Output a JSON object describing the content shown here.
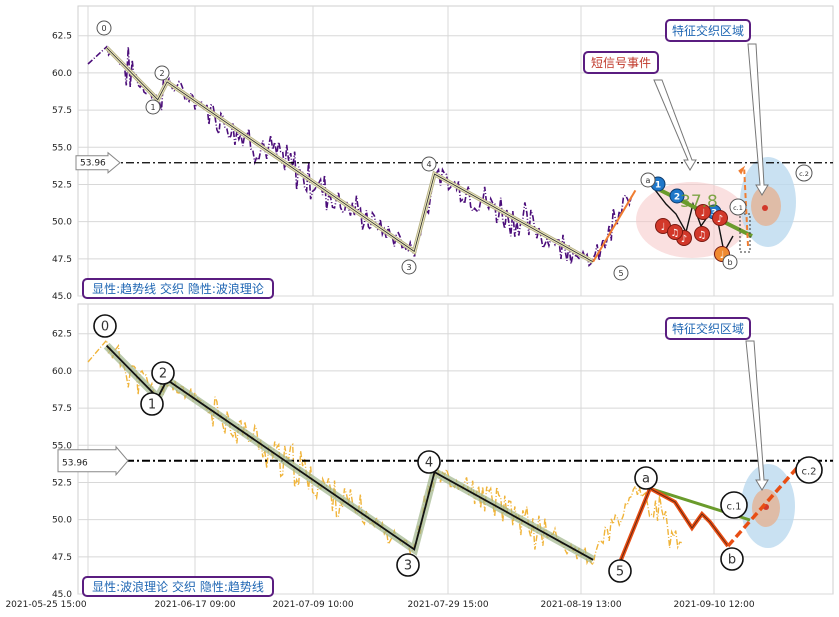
{
  "chart_data": [
    {
      "type": "line",
      "panel": "top",
      "ylim": [
        45.0,
        64.5
      ],
      "y_ticks": [
        "62.5",
        "60.0",
        "57.5",
        "55.0",
        "52.5",
        "50.0",
        "47.5",
        "45.0"
      ],
      "grid": true,
      "reference_line": {
        "value": 53.96,
        "label": "53.96",
        "style": "dash-dot",
        "color": "#000000"
      },
      "price_series": {
        "color": "#4b0d7a",
        "style": "dash-dot"
      },
      "wave_points": [
        {
          "label": "0",
          "x": "2021-05-29",
          "y": 61.7
        },
        {
          "label": "1",
          "x": "2021-06-09",
          "y": 58.2
        },
        {
          "label": "2",
          "x": "2021-06-11",
          "y": 59.4
        },
        {
          "label": "3",
          "x": "2021-07-24",
          "y": 48.0
        },
        {
          "label": "4",
          "x": "2021-07-27",
          "y": 53.2
        },
        {
          "label": "5",
          "x": "2021-08-21",
          "y": 47.3
        },
        {
          "label": "a",
          "x": "2021-08-28",
          "y": 52.1
        },
        {
          "label": "b",
          "x": "2021-09-05",
          "y": 48.1
        },
        {
          "label": "c.1",
          "x": "2021-09-07",
          "y": 50.3
        },
        {
          "label": "c.2",
          "x": "2021-09-15",
          "y": 53.5
        }
      ],
      "annotations": {
        "feature_zone": "特征交织区域",
        "short_signal": "短信号事件",
        "fib_value": "37.8",
        "caption": "显性:趋势线 交织 隐性:波浪理论",
        "signal_dots": [
          "1",
          "2",
          "3"
        ],
        "event_marks": [
          "♩",
          "♪",
          "♫",
          "♩",
          "♪",
          "♫",
          "♩"
        ]
      },
      "colors": {
        "trend": "#1a1a1a",
        "trend_glow": "#f3eec4",
        "accent_orange": "#f07d31",
        "zone_fill": "#bcd9ef",
        "signal_zone": "#f5c6c6",
        "fib_line": "#6a9b2c",
        "caption_border": "#5a1d80",
        "caption_text": "#1f66b3",
        "signal_text": "#c0392b"
      }
    },
    {
      "type": "line",
      "panel": "bottom",
      "ylim": [
        45.0,
        64.5
      ],
      "y_ticks": [
        "62.5",
        "60.0",
        "57.5",
        "55.0",
        "52.5",
        "50.0",
        "47.5",
        "45.0"
      ],
      "x_ticks": [
        "2021-05-25 15:00",
        "2021-06-17 09:00",
        "2021-07-09 10:00",
        "2021-07-29 15:00",
        "2021-08-19 13:00",
        "2021-09-10 12:00"
      ],
      "grid": true,
      "reference_line": {
        "value": 53.96,
        "label": "53.96",
        "style": "dash-dot",
        "color": "#000000"
      },
      "price_series": {
        "color": "#f0b43a",
        "style": "dash-dot"
      },
      "wave_labels": [
        "0",
        "1",
        "2",
        "3",
        "4",
        "5",
        "a",
        "b",
        "c.1",
        "c.2"
      ],
      "annotations": {
        "feature_zone": "特征交织区域",
        "caption": "显性:波浪理论 交织 隐性:趋势线"
      },
      "colors": {
        "wave": "#111111",
        "wave_glow": "#9fb58a",
        "abc": "#e84e14",
        "zone_fill": "#bcd9ef",
        "caption_border": "#5a1d80",
        "caption_text": "#1f66b3"
      }
    }
  ]
}
